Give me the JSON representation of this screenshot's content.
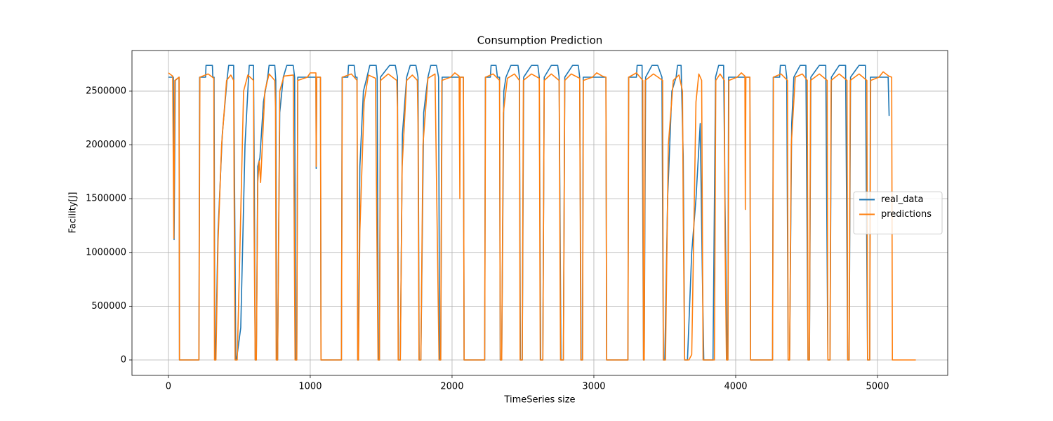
{
  "chart_data": {
    "type": "line",
    "title": "Consumption Prediction",
    "x_label": "TimeSeries size",
    "y_label": "Facility[J]",
    "xlim": [
      -257,
      5495
    ],
    "ylim": [
      -143600,
      2878000
    ],
    "xticks": [
      0,
      1000,
      2000,
      3000,
      4000,
      5000
    ],
    "yticks": [
      0,
      500000,
      1000000,
      1500000,
      2000000,
      2500000
    ],
    "grid": true,
    "legend_loc": "center right",
    "series": [
      {
        "name": "real_data",
        "color": "#1f77b4",
        "x": [
          0,
          35,
          40,
          48,
          75,
          78,
          215,
          220,
          262,
          265,
          310,
          313,
          322,
          327,
          332,
          350,
          380,
          415,
          425,
          460,
          465,
          475,
          480,
          510,
          540,
          565,
          570,
          600,
          605,
          612,
          620,
          630,
          645,
          670,
          700,
          710,
          750,
          757,
          763,
          770,
          785,
          810,
          835,
          880,
          890,
          897,
          905,
          912,
          1040,
          1042,
          1046,
          1072,
          1076,
          1220,
          1225,
          1265,
          1270,
          1310,
          1318,
          1330,
          1335,
          1340,
          1350,
          1375,
          1400,
          1420,
          1465,
          1472,
          1480,
          1488,
          1495,
          1560,
          1600,
          1615,
          1622,
          1635,
          1650,
          1680,
          1705,
          1745,
          1760,
          1768,
          1780,
          1800,
          1830,
          1850,
          1890,
          1905,
          1912,
          1920,
          1930,
          2080,
          2085,
          2230,
          2235,
          2270,
          2275,
          2310,
          2320,
          2335,
          2340,
          2350,
          2365,
          2380,
          2415,
          2465,
          2475,
          2482,
          2495,
          2505,
          2560,
          2605,
          2615,
          2625,
          2640,
          2650,
          2700,
          2745,
          2755,
          2768,
          2785,
          2795,
          2850,
          2890,
          2900,
          2910,
          2920,
          2925,
          3085,
          3090,
          3240,
          3245,
          3300,
          3305,
          3340,
          3350,
          3355,
          3365,
          3410,
          3450,
          3480,
          3490,
          3500,
          3520,
          3550,
          3580,
          3590,
          3615,
          3630,
          3640,
          3660,
          3690,
          3720,
          3750,
          3765,
          3775,
          3840,
          3858,
          3880,
          3915,
          3925,
          3940,
          3945,
          3950,
          4100,
          4105,
          4260,
          4265,
          4310,
          4315,
          4350,
          4360,
          4370,
          4380,
          4395,
          4410,
          4455,
          4495,
          4510,
          4520,
          4530,
          4590,
          4635,
          4650,
          4665,
          4675,
          4730,
          4775,
          4790,
          4800,
          4810,
          4870,
          4915,
          4930,
          4945,
          4950,
          5075,
          5082
        ],
        "values": [
          2630000,
          2630000,
          1120000,
          2600000,
          2630000,
          0,
          0,
          2630000,
          2630000,
          2740000,
          2740000,
          2630000,
          2630000,
          0,
          0,
          1200000,
          2100000,
          2630000,
          2740000,
          2740000,
          1900000,
          0,
          0,
          300000,
          2000000,
          2630000,
          2740000,
          2740000,
          1800000,
          0,
          0,
          1800000,
          1880000,
          2400000,
          2630000,
          2740000,
          2740000,
          2600000,
          0,
          0,
          2300000,
          2630000,
          2740000,
          2740000,
          2630000,
          0,
          0,
          2630000,
          2630000,
          1780000,
          2630000,
          2630000,
          0,
          0,
          2630000,
          2630000,
          2740000,
          2740000,
          2630000,
          2630000,
          0,
          0,
          1800000,
          2500000,
          2630000,
          2740000,
          2740000,
          2630000,
          0,
          0,
          2630000,
          2740000,
          2740000,
          2630000,
          0,
          0,
          2100000,
          2630000,
          2740000,
          2740000,
          2630000,
          0,
          0,
          2300000,
          2630000,
          2740000,
          2740000,
          2630000,
          0,
          0,
          2630000,
          2630000,
          0,
          0,
          2630000,
          2630000,
          2740000,
          2740000,
          2630000,
          2630000,
          0,
          0,
          2500000,
          2630000,
          2740000,
          2740000,
          2630000,
          0,
          0,
          2630000,
          2740000,
          2740000,
          2630000,
          0,
          0,
          2630000,
          2740000,
          2740000,
          2630000,
          0,
          0,
          2630000,
          2740000,
          2740000,
          2630000,
          0,
          0,
          2630000,
          2630000,
          0,
          0,
          2630000,
          2630000,
          2740000,
          2740000,
          0,
          0,
          2630000,
          2740000,
          2740000,
          2630000,
          0,
          0,
          1500000,
          2500000,
          2630000,
          2740000,
          2740000,
          1900000,
          0,
          0,
          1000000,
          1500000,
          2200000,
          800000,
          0,
          0,
          2630000,
          2740000,
          2740000,
          1450000,
          0,
          0,
          2630000,
          2630000,
          0,
          0,
          2630000,
          2630000,
          2740000,
          2740000,
          2630000,
          0,
          0,
          2200000,
          2630000,
          2740000,
          2740000,
          0,
          0,
          2630000,
          2740000,
          2740000,
          0,
          0,
          2630000,
          2740000,
          2740000,
          0,
          0,
          2630000,
          2740000,
          2740000,
          0,
          0,
          2630000,
          2630000,
          2270000
        ]
      },
      {
        "name": "predictions",
        "color": "#ff7f0e",
        "x": [
          0,
          30,
          38,
          45,
          75,
          78,
          215,
          222,
          280,
          320,
          325,
          335,
          350,
          375,
          410,
          440,
          460,
          463,
          470,
          485,
          500,
          530,
          560,
          600,
          603,
          612,
          620,
          630,
          640,
          650,
          680,
          710,
          750,
          755,
          760,
          770,
          785,
          815,
          880,
          893,
          905,
          912,
          980,
          1000,
          1040,
          1042,
          1046,
          1072,
          1076,
          1220,
          1226,
          1290,
          1330,
          1335,
          1340,
          1350,
          1380,
          1410,
          1460,
          1478,
          1488,
          1496,
          1550,
          1610,
          1615,
          1620,
          1635,
          1648,
          1680,
          1720,
          1755,
          1760,
          1767,
          1780,
          1795,
          1830,
          1880,
          1908,
          1920,
          1928,
          1990,
          2020,
          2050,
          2055,
          2058,
          2080,
          2085,
          2230,
          2236,
          2290,
          2335,
          2340,
          2350,
          2362,
          2390,
          2440,
          2475,
          2480,
          2495,
          2503,
          2560,
          2615,
          2622,
          2640,
          2650,
          2700,
          2755,
          2765,
          2785,
          2795,
          2840,
          2900,
          2908,
          2920,
          2926,
          2990,
          3020,
          3060,
          3085,
          3090,
          3240,
          3246,
          3300,
          3345,
          3350,
          3355,
          3362,
          3420,
          3485,
          3490,
          3505,
          3525,
          3560,
          3600,
          3625,
          3630,
          3640,
          3670,
          3690,
          3720,
          3740,
          3760,
          3770,
          3850,
          3860,
          3890,
          3920,
          3925,
          3935,
          3945,
          3952,
          4010,
          4040,
          4065,
          4068,
          4072,
          4100,
          4105,
          4260,
          4266,
          4320,
          4365,
          4370,
          4380,
          4392,
          4420,
          4470,
          4505,
          4510,
          4520,
          4528,
          4590,
          4645,
          4650,
          4665,
          4673,
          4730,
          4785,
          4790,
          4800,
          4808,
          4870,
          4925,
          4930,
          4945,
          4952,
          5010,
          5040,
          5080,
          5100,
          5105,
          5270
        ],
        "values": [
          2670000,
          2640000,
          1130000,
          2600000,
          2630000,
          0,
          0,
          2630000,
          2660000,
          2620000,
          0,
          0,
          1100000,
          2000000,
          2600000,
          2650000,
          2600000,
          1620000,
          0,
          0,
          800000,
          2500000,
          2650000,
          2600000,
          1400000,
          0,
          0,
          1650000,
          1850000,
          1650000,
          2500000,
          2660000,
          2600000,
          2350000,
          0,
          0,
          2500000,
          2640000,
          2650000,
          0,
          0,
          2600000,
          2630000,
          2670000,
          2670000,
          1800000,
          2630000,
          2630000,
          0,
          0,
          2630000,
          2660000,
          2600000,
          0,
          0,
          1200000,
          2400000,
          2650000,
          2620000,
          0,
          0,
          2600000,
          2660000,
          2600000,
          2350000,
          0,
          0,
          1800000,
          2600000,
          2650000,
          2600000,
          2200000,
          0,
          0,
          2000000,
          2620000,
          2660000,
          0,
          0,
          2600000,
          2630000,
          2670000,
          2640000,
          1500000,
          2630000,
          2630000,
          0,
          0,
          2630000,
          2660000,
          2600000,
          0,
          0,
          2300000,
          2620000,
          2660000,
          2600000,
          0,
          0,
          2600000,
          2660000,
          2620000,
          0,
          0,
          2600000,
          2660000,
          2600000,
          0,
          0,
          2600000,
          2660000,
          2620000,
          0,
          0,
          2600000,
          2630000,
          2670000,
          2640000,
          2630000,
          0,
          0,
          2630000,
          2670000,
          2600000,
          0,
          0,
          2600000,
          2660000,
          2600000,
          0,
          0,
          2000000,
          2600000,
          2650000,
          2500000,
          1400000,
          0,
          0,
          50000,
          2400000,
          2660000,
          2600000,
          0,
          0,
          2600000,
          2660000,
          2600000,
          1100000,
          0,
          0,
          2600000,
          2630000,
          2670000,
          2640000,
          1400000,
          2630000,
          2630000,
          0,
          0,
          2630000,
          2660000,
          2600000,
          0,
          0,
          2000000,
          2630000,
          2660000,
          2600000,
          0,
          0,
          2600000,
          2660000,
          2600000,
          0,
          0,
          2600000,
          2660000,
          2600000,
          0,
          0,
          2600000,
          2660000,
          2600000,
          0,
          0,
          2600000,
          2630000,
          2680000,
          2640000,
          2630000,
          0,
          0
        ]
      }
    ]
  }
}
